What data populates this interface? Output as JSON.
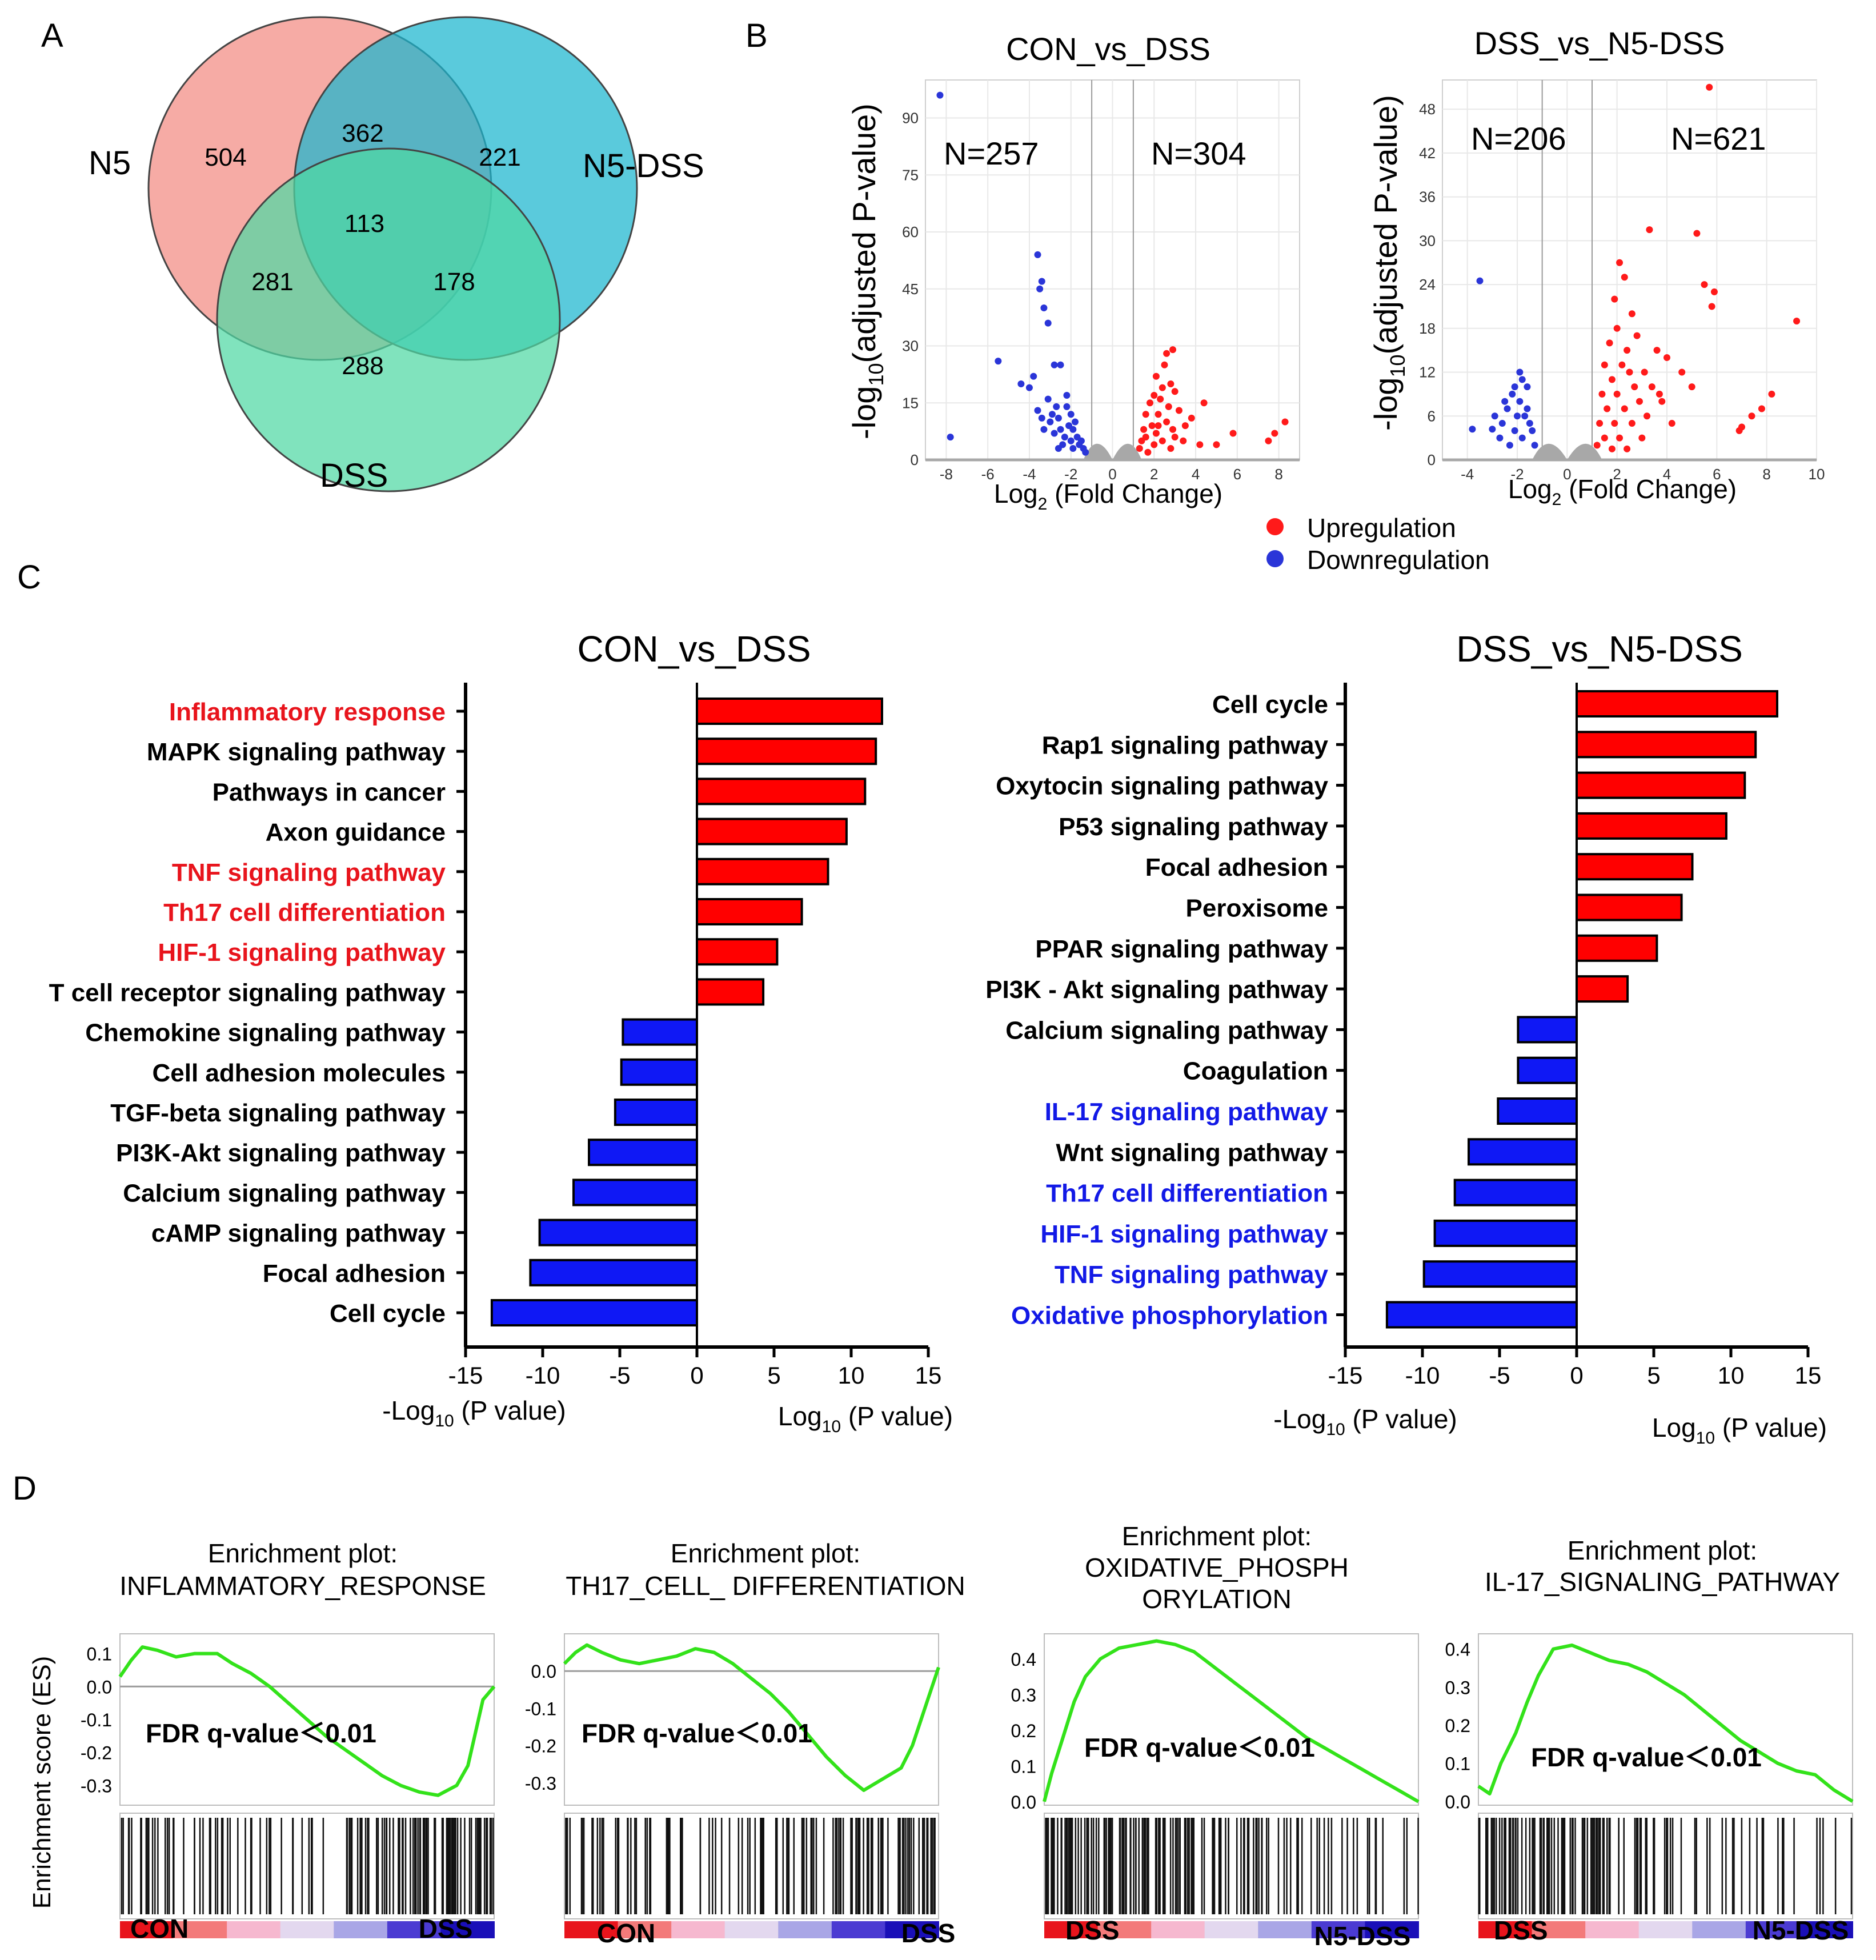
{
  "panels": {
    "a": {
      "letter": "A",
      "sets": [
        {
          "label": "N5",
          "color": "#f28b82"
        },
        {
          "label": "N5-DSS",
          "color": "#1ab5cf"
        },
        {
          "label": "DSS",
          "color": "#4fd8a3"
        }
      ],
      "counts": {
        "n5_only": "504",
        "n5_n5dss": "362",
        "n5dss_only": "221",
        "all_three": "113",
        "n5_dss": "281",
        "n5dss_dss": "178",
        "dss_only": "288"
      }
    },
    "b": {
      "letter": "B"
    },
    "c": {
      "letter": "C"
    },
    "d": {
      "letter": "D"
    }
  },
  "chart_data": [
    {
      "id": "volcano-con-vs-dss",
      "type": "scatter",
      "title": "CON_vs_DSS",
      "xlabel_main": "Log",
      "xlabel_sub": "2",
      "xlabel_rest": " (Fold Change)",
      "ylabel_pre": "-log",
      "ylabel_sub": "10",
      "ylabel_rest": "(adjusted P-value)",
      "xlim": [
        -9,
        9
      ],
      "ylim": [
        0,
        100
      ],
      "xticks": [
        -8,
        -6,
        -4,
        -2,
        0,
        2,
        4,
        6,
        8
      ],
      "yticks": [
        0,
        15,
        30,
        45,
        60,
        75,
        90
      ],
      "thresholds": [
        -1,
        1
      ],
      "annotations": {
        "down": "N=257",
        "up": "N=304"
      },
      "down_points": [
        [
          -8.3,
          96
        ],
        [
          -3.6,
          54
        ],
        [
          -3.4,
          47
        ],
        [
          -3.5,
          45
        ],
        [
          -3.3,
          40
        ],
        [
          -3.1,
          36
        ],
        [
          -5.5,
          26
        ],
        [
          -4.4,
          20
        ],
        [
          -4.0,
          19
        ],
        [
          -3.8,
          22
        ],
        [
          -2.8,
          25
        ],
        [
          -2.5,
          25
        ],
        [
          -7.8,
          6
        ],
        [
          -3.1,
          16
        ],
        [
          -2.7,
          14
        ],
        [
          -3.0,
          10
        ],
        [
          -3.3,
          8
        ],
        [
          -3.4,
          11
        ],
        [
          -2.2,
          14
        ],
        [
          -2.0,
          12
        ],
        [
          -1.8,
          10
        ],
        [
          -2.5,
          8
        ],
        [
          -2.3,
          6
        ],
        [
          -2.0,
          5
        ],
        [
          -1.6,
          4
        ],
        [
          -1.4,
          3
        ],
        [
          -1.9,
          8
        ],
        [
          -2.6,
          11
        ],
        [
          -2.1,
          9
        ],
        [
          -1.7,
          6
        ],
        [
          -2.8,
          7
        ],
        [
          -1.5,
          5
        ],
        [
          -2.4,
          4
        ],
        [
          -1.3,
          2
        ],
        [
          -2.9,
          12
        ],
        [
          -3.6,
          13
        ],
        [
          -2.2,
          17
        ],
        [
          -1.9,
          3
        ],
        [
          -2.6,
          3
        ]
      ],
      "up_points": [
        [
          2.9,
          29
        ],
        [
          2.6,
          28
        ],
        [
          2.5,
          25
        ],
        [
          2.1,
          22
        ],
        [
          2.8,
          20
        ],
        [
          2.4,
          19
        ],
        [
          3.0,
          18
        ],
        [
          2.0,
          17
        ],
        [
          2.3,
          16
        ],
        [
          1.8,
          15
        ],
        [
          2.7,
          14
        ],
        [
          3.2,
          13
        ],
        [
          1.6,
          12
        ],
        [
          2.2,
          12
        ],
        [
          4.4,
          15
        ],
        [
          3.8,
          11
        ],
        [
          3.5,
          9
        ],
        [
          2.9,
          8
        ],
        [
          2.1,
          7
        ],
        [
          1.6,
          6
        ],
        [
          1.4,
          5
        ],
        [
          1.9,
          9
        ],
        [
          2.6,
          10
        ],
        [
          3.0,
          6
        ],
        [
          2.4,
          5
        ],
        [
          1.3,
          3
        ],
        [
          1.7,
          2
        ],
        [
          2.0,
          4
        ],
        [
          3.4,
          5
        ],
        [
          2.8,
          3
        ],
        [
          4.2,
          4
        ],
        [
          8.3,
          10
        ],
        [
          7.8,
          7
        ],
        [
          7.5,
          5
        ],
        [
          5.8,
          7
        ],
        [
          5.0,
          4
        ],
        [
          1.5,
          8
        ],
        [
          2.2,
          9
        ]
      ]
    },
    {
      "id": "volcano-dss-vs-n5dss",
      "type": "scatter",
      "title": "DSS_vs_N5-DSS",
      "xlabel_main": "Log",
      "xlabel_sub": "2",
      "xlabel_rest": " (Fold Change)",
      "ylabel_pre": "-log",
      "ylabel_sub": "10",
      "ylabel_rest": "(adjusted P-value)",
      "xlim": [
        -5,
        10
      ],
      "ylim": [
        0,
        52
      ],
      "xticks": [
        -4,
        -2,
        0,
        2,
        4,
        6,
        8,
        10
      ],
      "yticks": [
        0,
        6,
        12,
        18,
        24,
        30,
        36,
        42,
        48
      ],
      "thresholds": [
        -1,
        1
      ],
      "annotations": {
        "down": "N=206",
        "up": "N=621"
      },
      "down_points": [
        [
          -3.5,
          24.5
        ],
        [
          -1.9,
          12
        ],
        [
          -1.8,
          11
        ],
        [
          -1.6,
          10
        ],
        [
          -2.2,
          9
        ],
        [
          -1.9,
          8
        ],
        [
          -2.4,
          7
        ],
        [
          -2.0,
          6
        ],
        [
          -1.7,
          6
        ],
        [
          -2.6,
          5
        ],
        [
          -1.5,
          5
        ],
        [
          -2.1,
          4
        ],
        [
          -1.4,
          4
        ],
        [
          -3.0,
          4.2
        ],
        [
          -3.8,
          4.2
        ],
        [
          -2.7,
          3
        ],
        [
          -1.8,
          3
        ],
        [
          -2.3,
          2
        ],
        [
          -1.3,
          2
        ],
        [
          -2.9,
          6
        ],
        [
          -2.5,
          8
        ],
        [
          -1.6,
          7
        ],
        [
          -2.1,
          10
        ]
      ],
      "up_points": [
        [
          5.7,
          51
        ],
        [
          5.2,
          31
        ],
        [
          5.5,
          24
        ],
        [
          5.9,
          23
        ],
        [
          5.8,
          21
        ],
        [
          9.2,
          19
        ],
        [
          3.3,
          31.5
        ],
        [
          2.1,
          27
        ],
        [
          2.3,
          25
        ],
        [
          1.9,
          22
        ],
        [
          2.6,
          20
        ],
        [
          2.0,
          18
        ],
        [
          2.8,
          17
        ],
        [
          1.7,
          16
        ],
        [
          2.4,
          15
        ],
        [
          3.6,
          15
        ],
        [
          4.0,
          14
        ],
        [
          1.5,
          13
        ],
        [
          2.2,
          13
        ],
        [
          3.1,
          12
        ],
        [
          4.6,
          12
        ],
        [
          1.8,
          11
        ],
        [
          2.7,
          10
        ],
        [
          3.4,
          10
        ],
        [
          5.0,
          10
        ],
        [
          1.4,
          9
        ],
        [
          2.0,
          9
        ],
        [
          2.9,
          8
        ],
        [
          3.8,
          8
        ],
        [
          1.6,
          7
        ],
        [
          2.3,
          7
        ],
        [
          3.2,
          6
        ],
        [
          1.3,
          5
        ],
        [
          1.9,
          5
        ],
        [
          2.6,
          5
        ],
        [
          4.2,
          5
        ],
        [
          1.5,
          3
        ],
        [
          2.1,
          3
        ],
        [
          3.0,
          3
        ],
        [
          1.2,
          2
        ],
        [
          1.8,
          1.5
        ],
        [
          2.4,
          1.5
        ],
        [
          8.2,
          9
        ],
        [
          7.8,
          7
        ],
        [
          7.4,
          6
        ],
        [
          7.0,
          4.5
        ],
        [
          6.9,
          4
        ],
        [
          3.7,
          9
        ],
        [
          2.5,
          12
        ]
      ]
    },
    {
      "id": "bar-con-vs-dss",
      "type": "bar",
      "orientation": "horizontal",
      "title": "CON_vs_DSS",
      "xlim": [
        -15,
        15
      ],
      "xticks": [
        -15,
        -10,
        -5,
        0,
        5,
        10,
        15
      ],
      "xlabel_neg_pre": "-Log",
      "xlabel_neg_sub": "10",
      "xlabel_neg_rest": " (P value)",
      "xlabel_pos_pre": "Log",
      "xlabel_pos_sub": "10",
      "xlabel_pos_rest": " (P value)",
      "categories": [
        "Inflammatory response",
        "MAPK signaling pathway",
        "Pathways in cancer",
        "Axon guidance",
        "TNF signaling pathway",
        "Th17 cell differentiation",
        "HIF-1 signaling pathway",
        "T cell receptor signaling pathway",
        "Chemokine signaling pathway",
        "Cell adhesion molecules",
        "TGF-beta signaling pathway",
        "PI3K-Akt signaling pathway",
        "Calcium signaling pathway",
        "cAMP signaling pathway",
        "Focal adhesion",
        "Cell cycle"
      ],
      "values": [
        12.0,
        11.6,
        10.9,
        9.7,
        8.5,
        6.8,
        5.2,
        4.3,
        -4.8,
        -4.9,
        -5.3,
        -7.0,
        -8.0,
        -10.2,
        -10.8,
        -13.3
      ],
      "label_colors": [
        "#e8141c",
        "#000000",
        "#000000",
        "#000000",
        "#e8141c",
        "#e8141c",
        "#e8141c",
        "#000000",
        "#000000",
        "#000000",
        "#000000",
        "#000000",
        "#000000",
        "#000000",
        "#000000",
        "#000000"
      ],
      "bar_colors": {
        "up": "#ff0000",
        "down": "#0f18f5"
      }
    },
    {
      "id": "bar-dss-vs-n5dss",
      "type": "bar",
      "orientation": "horizontal",
      "title": "DSS_vs_N5-DSS",
      "xlim": [
        -15,
        15
      ],
      "xticks": [
        -15,
        -10,
        -5,
        0,
        5,
        10,
        15
      ],
      "xlabel_neg_pre": "-Log",
      "xlabel_neg_sub": "10",
      "xlabel_neg_rest": " (P value)",
      "xlabel_pos_pre": "Log",
      "xlabel_pos_sub": "10",
      "xlabel_pos_rest": " (P value)",
      "categories": [
        "Cell cycle",
        "Rap1 signaling pathway",
        "Oxytocin signaling pathway",
        "P53 signaling pathway",
        "Focal adhesion",
        "Peroxisome",
        "PPAR signaling pathway",
        "PI3K - Akt signaling pathway",
        "Calcium signaling pathway",
        "Coagulation",
        "IL-17 signaling pathway",
        "Wnt signaling pathway",
        "Th17 cell differentiation",
        "HIF-1 signaling pathway",
        "TNF signaling pathway",
        "Oxidative phosphorylation"
      ],
      "values": [
        13.0,
        11.6,
        10.9,
        9.7,
        7.5,
        6.8,
        5.2,
        3.3,
        -3.8,
        -3.8,
        -5.1,
        -7.0,
        -7.9,
        -9.2,
        -9.9,
        -12.3
      ],
      "label_colors": [
        "#000000",
        "#000000",
        "#000000",
        "#000000",
        "#000000",
        "#000000",
        "#000000",
        "#000000",
        "#000000",
        "#000000",
        "#1219e6",
        "#000000",
        "#1219e6",
        "#1219e6",
        "#1219e6",
        "#1219e6"
      ],
      "bar_colors": {
        "up": "#ff0000",
        "down": "#0f18f5"
      }
    },
    {
      "id": "gsea-inflammatory",
      "type": "line",
      "title_line1": "Enrichment plot:",
      "title_line2": "INFLAMMATORY_RESPONSE",
      "title_line3": "",
      "ylabel": "Enrichment score (ES)",
      "ylim": [
        -0.36,
        0.16
      ],
      "yticks": [
        -0.3,
        -0.2,
        -0.1,
        0.0,
        0.1
      ],
      "ytick_labels": [
        "-0.3",
        "-0.2",
        "-0.1",
        "0.0",
        "0.1"
      ],
      "zero_line": true,
      "fdr_text": "FDR q-value＜0.01",
      "left_group": "CON",
      "right_group": "DSS",
      "x": [
        0,
        0.03,
        0.06,
        0.1,
        0.15,
        0.2,
        0.26,
        0.3,
        0.35,
        0.4,
        0.45,
        0.5,
        0.55,
        0.6,
        0.65,
        0.7,
        0.75,
        0.8,
        0.85,
        0.9,
        0.93,
        0.95,
        0.97,
        1.0
      ],
      "y": [
        0.03,
        0.08,
        0.12,
        0.11,
        0.09,
        0.1,
        0.1,
        0.07,
        0.04,
        0.0,
        -0.05,
        -0.1,
        -0.15,
        -0.19,
        -0.23,
        -0.27,
        -0.3,
        -0.32,
        -0.33,
        -0.3,
        -0.24,
        -0.14,
        -0.04,
        0.0
      ],
      "hit_density": [
        0.55,
        0.5,
        0.45,
        0.45,
        0.4,
        0.35,
        0.3,
        0.3,
        0.35,
        0.45,
        0.55,
        0.7,
        0.85,
        0.95,
        1.0,
        1.0
      ],
      "gradient_colors": [
        "#e8141c",
        "#f37a7a",
        "#f6b8cf",
        "#e3d8ef",
        "#a9a6e6",
        "#4b3bd2",
        "#1a0fb8"
      ]
    },
    {
      "id": "gsea-th17",
      "type": "line",
      "title_line1": "Enrichment plot:",
      "title_line2": "TH17_CELL_ DIFFERENTIATION",
      "title_line3": "",
      "ylabel": "",
      "ylim": [
        -0.36,
        0.1
      ],
      "yticks": [
        -0.3,
        -0.2,
        -0.1,
        0.0
      ],
      "ytick_labels": [
        "-0.3",
        "-0.2",
        "-0.1",
        "0.0"
      ],
      "zero_line": true,
      "fdr_text": "FDR q-value＜0.01",
      "left_group": "CON",
      "right_group": "DSS",
      "x": [
        0,
        0.03,
        0.06,
        0.1,
        0.15,
        0.2,
        0.25,
        0.3,
        0.35,
        0.4,
        0.45,
        0.5,
        0.55,
        0.6,
        0.65,
        0.7,
        0.75,
        0.8,
        0.85,
        0.9,
        0.93,
        0.95,
        0.97,
        1.0
      ],
      "y": [
        0.02,
        0.05,
        0.07,
        0.05,
        0.03,
        0.02,
        0.03,
        0.04,
        0.06,
        0.05,
        0.02,
        -0.02,
        -0.06,
        -0.11,
        -0.17,
        -0.23,
        -0.28,
        -0.32,
        -0.29,
        -0.26,
        -0.2,
        -0.14,
        -0.08,
        0.01
      ],
      "hit_density": [
        0.5,
        0.5,
        0.45,
        0.4,
        0.35,
        0.3,
        0.3,
        0.35,
        0.4,
        0.5,
        0.55,
        0.6,
        0.7,
        0.75,
        0.8,
        0.85
      ],
      "gradient_colors": [
        "#e8141c",
        "#f37a7a",
        "#f6b8cf",
        "#e3d8ef",
        "#a9a6e6",
        "#4b3bd2",
        "#1a0fb8"
      ]
    },
    {
      "id": "gsea-oxphos",
      "type": "line",
      "title_line1": "Enrichment plot:",
      "title_line2": "OXIDATIVE_PHOSPH",
      "title_line3": "ORYLATION",
      "ylabel": "",
      "ylim": [
        -0.01,
        0.47
      ],
      "yticks": [
        0.0,
        0.1,
        0.2,
        0.3,
        0.4
      ],
      "ytick_labels": [
        "0.0",
        "0.1",
        "0.2",
        "0.3",
        "0.4"
      ],
      "zero_line": false,
      "fdr_text": "FDR q-value＜0.01",
      "left_group": "DSS",
      "right_group": "N5-DSS",
      "x": [
        0,
        0.02,
        0.05,
        0.08,
        0.11,
        0.15,
        0.2,
        0.25,
        0.3,
        0.35,
        0.4,
        0.45,
        0.5,
        0.55,
        0.6,
        0.65,
        0.7,
        0.75,
        0.8,
        0.85,
        0.9,
        0.95,
        1.0
      ],
      "y": [
        0.0,
        0.08,
        0.18,
        0.28,
        0.35,
        0.4,
        0.43,
        0.44,
        0.45,
        0.44,
        0.42,
        0.38,
        0.34,
        0.3,
        0.26,
        0.22,
        0.18,
        0.15,
        0.12,
        0.09,
        0.06,
        0.03,
        0.0
      ],
      "hit_density": [
        0.95,
        1.0,
        1.0,
        0.95,
        0.9,
        0.85,
        0.8,
        0.75,
        0.6,
        0.5,
        0.4,
        0.35,
        0.3,
        0.25,
        0.2,
        0.2
      ],
      "gradient_colors": [
        "#e8141c",
        "#f37a7a",
        "#f6b8cf",
        "#e3d8ef",
        "#a9a6e6",
        "#4b3bd2",
        "#1a0fb8"
      ]
    },
    {
      "id": "gsea-il17",
      "type": "line",
      "title_line1": "Enrichment plot:",
      "title_line2": "IL-17_SIGNALING_PATHWAY",
      "title_line3": "",
      "ylabel": "",
      "ylim": [
        -0.01,
        0.44
      ],
      "yticks": [
        0.0,
        0.1,
        0.2,
        0.3,
        0.4
      ],
      "ytick_labels": [
        "0.0",
        "0.1",
        "0.2",
        "0.3",
        "0.4"
      ],
      "zero_line": false,
      "fdr_text": "FDR q-value＜0.01",
      "left_group": "DSS",
      "right_group": "N5-DSS",
      "x": [
        0,
        0.03,
        0.06,
        0.1,
        0.13,
        0.16,
        0.2,
        0.25,
        0.3,
        0.35,
        0.4,
        0.45,
        0.5,
        0.55,
        0.6,
        0.65,
        0.7,
        0.75,
        0.8,
        0.85,
        0.9,
        0.95,
        1.0
      ],
      "y": [
        0.04,
        0.02,
        0.1,
        0.18,
        0.26,
        0.33,
        0.4,
        0.41,
        0.39,
        0.37,
        0.36,
        0.34,
        0.31,
        0.28,
        0.24,
        0.2,
        0.16,
        0.13,
        0.1,
        0.08,
        0.07,
        0.03,
        0.0
      ],
      "hit_density": [
        0.9,
        0.95,
        0.9,
        0.85,
        0.75,
        0.65,
        0.55,
        0.45,
        0.35,
        0.3,
        0.25,
        0.2,
        0.2,
        0.25,
        0.2,
        0.15
      ],
      "gradient_colors": [
        "#e8141c",
        "#f37a7a",
        "#f6b8cf",
        "#e3d8ef",
        "#a9a6e6",
        "#4b3bd2",
        "#1a0fb8"
      ]
    }
  ],
  "legend": {
    "up_label": "Upregulation",
    "down_label": "Downregulation",
    "up_color": "#ff1a1a",
    "down_color": "#2a35d8"
  }
}
